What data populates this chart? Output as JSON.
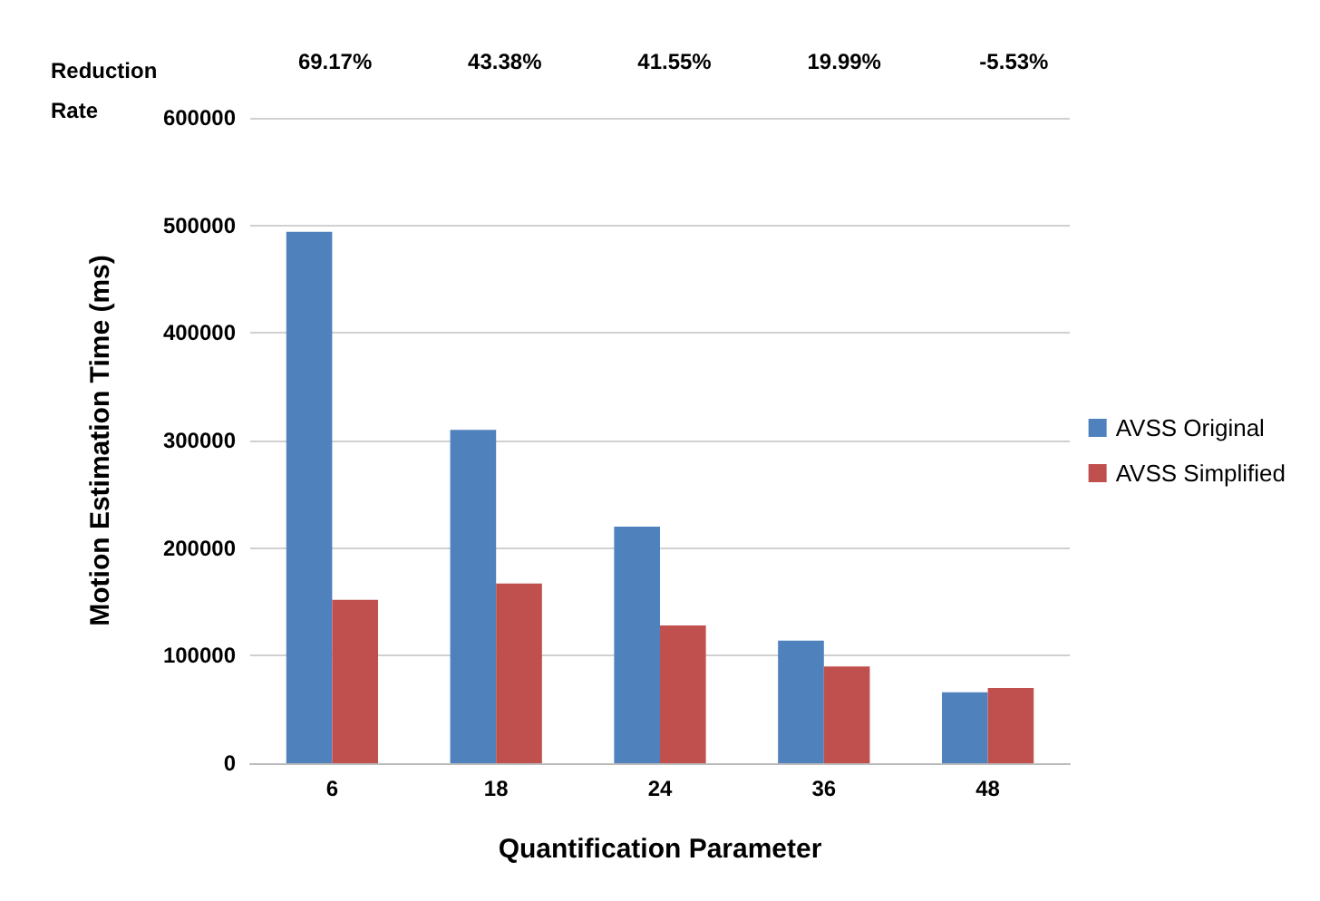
{
  "chart_data": {
    "type": "bar",
    "categories": [
      "6",
      "18",
      "24",
      "36",
      "48"
    ],
    "series": [
      {
        "name": "AVSS Original",
        "color": "#4f81bd",
        "values": [
          494000,
          310000,
          220000,
          114000,
          66000
        ]
      },
      {
        "name": "AVSS Simplified",
        "color": "#c0504d",
        "values": [
          152000,
          167000,
          128000,
          90000,
          70000
        ]
      }
    ],
    "xlabel": "Quantification Parameter",
    "ylabel": "Motion Estimation Time (ms)",
    "ylim": [
      0,
      600000
    ],
    "yticks": [
      0,
      100000,
      200000,
      300000,
      400000,
      500000,
      600000
    ],
    "grid": "y",
    "legend": "right",
    "annotations": [
      "Reduction Rate",
      "69.17%",
      "43.38%",
      "41.55%",
      "19.99%",
      "-5.53%"
    ]
  }
}
